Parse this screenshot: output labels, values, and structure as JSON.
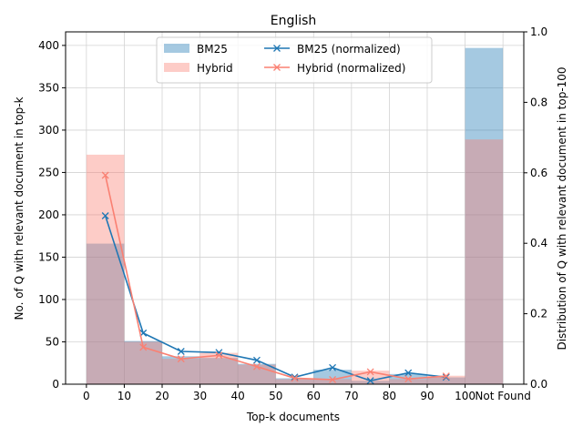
{
  "chart_data": {
    "type": "bar",
    "title": "English",
    "xlabel": "Top-k documents",
    "ylabel": "No. of Q with relevant document in top-k",
    "y2label": "Distribution of Q with relevant document in top-100",
    "x_ticks": [
      "0",
      "10",
      "20",
      "30",
      "40",
      "50",
      "60",
      "70",
      "80",
      "90",
      "100",
      "Not Found"
    ],
    "y_ticks": [
      "0",
      "50",
      "100",
      "150",
      "200",
      "250",
      "300",
      "350",
      "400"
    ],
    "y2_ticks": [
      "0.0",
      "0.2",
      "0.4",
      "0.6",
      "0.8",
      "1.0"
    ],
    "ylim": [
      0,
      416
    ],
    "y2lim": [
      0,
      1.0
    ],
    "grid": true,
    "legend_position": "top-center",
    "bins": [
      [
        0,
        10
      ],
      [
        10,
        20
      ],
      [
        20,
        30
      ],
      [
        30,
        40
      ],
      [
        40,
        50
      ],
      [
        50,
        60
      ],
      [
        60,
        70
      ],
      [
        70,
        80
      ],
      [
        80,
        90
      ],
      [
        90,
        100
      ],
      [
        100,
        110
      ]
    ],
    "bar_series": [
      {
        "name": "BM25",
        "color": "#1f77b4",
        "opacity": 0.4,
        "values": [
          166,
          51,
          33,
          31,
          24,
          7,
          17,
          4,
          12,
          8,
          397
        ]
      },
      {
        "name": "Hybrid",
        "color": "#fa8072",
        "opacity": 0.4,
        "values": [
          271,
          50,
          30,
          37,
          23,
          6,
          6,
          16,
          6,
          10,
          289
        ]
      }
    ],
    "line_series": [
      {
        "name": "BM25 (normalized)",
        "color": "#1f77b4",
        "marker": "x",
        "x": [
          5,
          15,
          25,
          35,
          45,
          55,
          65,
          75,
          85,
          95
        ],
        "values": [
          0.478,
          0.145,
          0.093,
          0.09,
          0.068,
          0.02,
          0.047,
          0.01,
          0.032,
          0.02
        ]
      },
      {
        "name": "Hybrid (normalized)",
        "color": "#fa8072",
        "marker": "x",
        "x": [
          5,
          15,
          25,
          35,
          45,
          55,
          65,
          75,
          85,
          95
        ],
        "values": [
          0.593,
          0.105,
          0.072,
          0.082,
          0.05,
          0.017,
          0.013,
          0.035,
          0.015,
          0.023
        ]
      }
    ]
  }
}
